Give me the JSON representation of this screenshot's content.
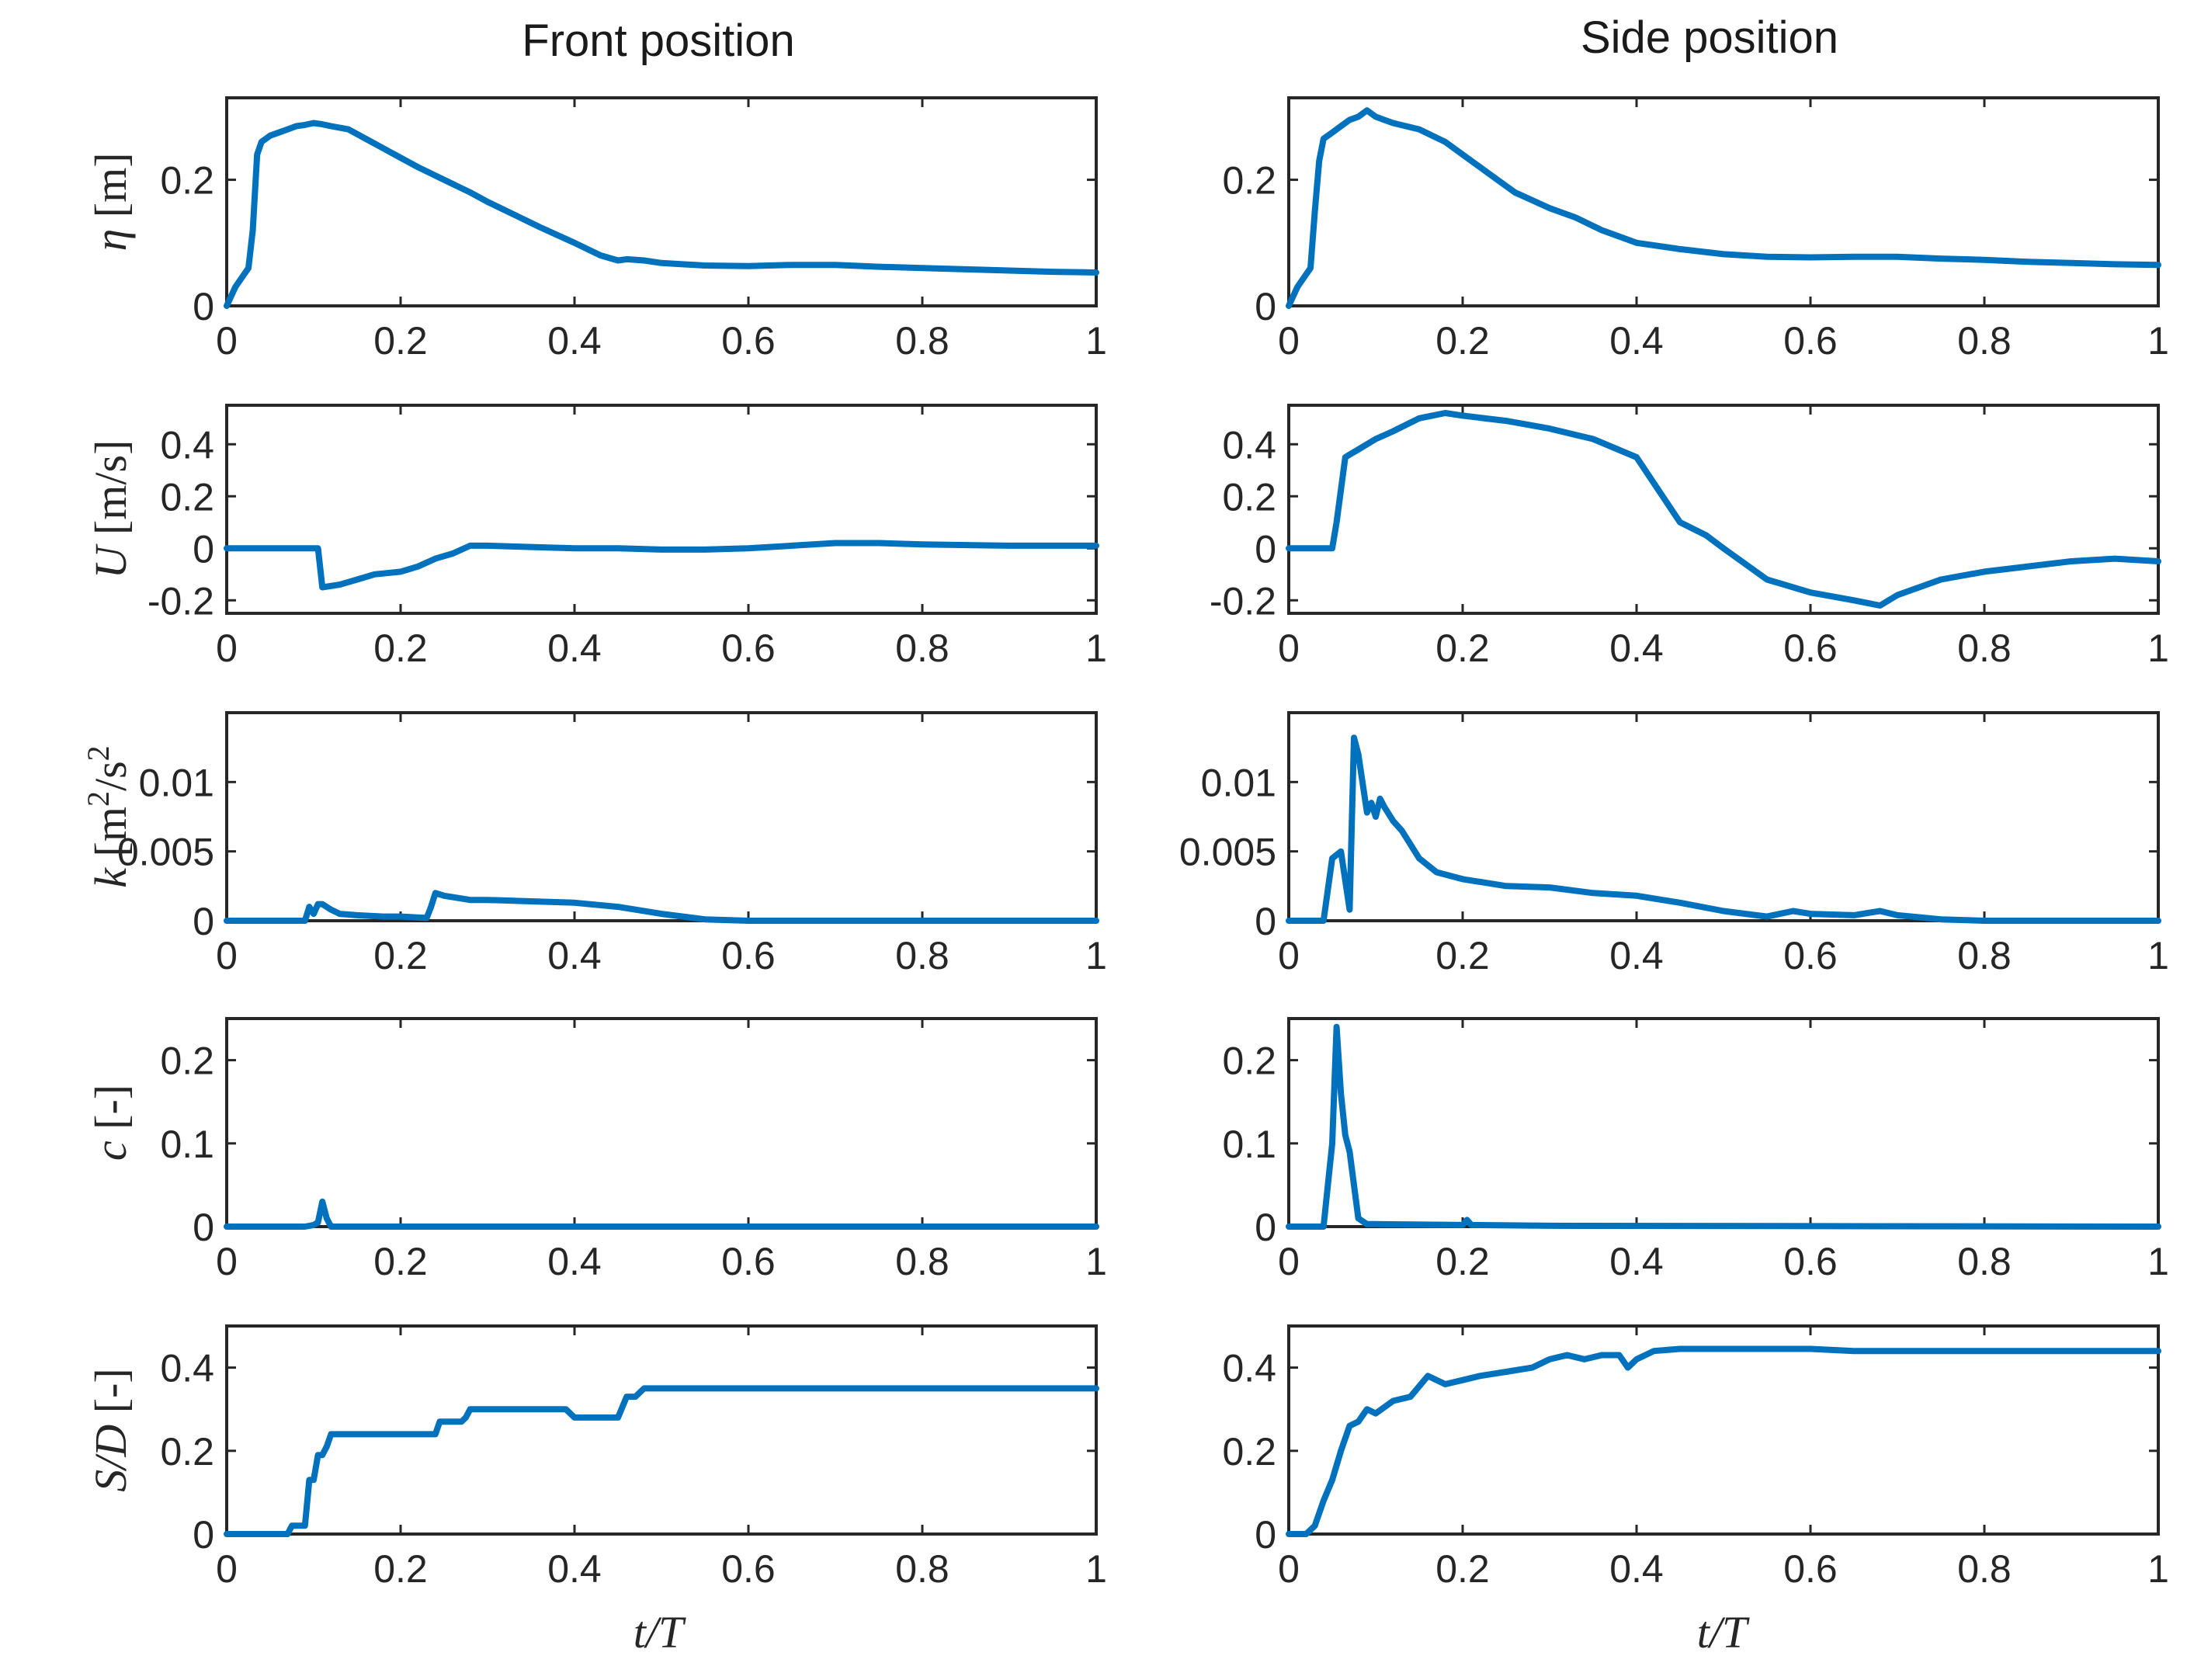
{
  "column_titles": [
    "Front position",
    "Side position"
  ],
  "xlabel_parts": [
    "t",
    "/",
    "T"
  ],
  "colors": {
    "series": "#0072BD",
    "axis": "#262626"
  },
  "chart_data": [
    {
      "type": "line",
      "panel": "front-eta",
      "column": 0,
      "row": 0,
      "ylabel_parts": [
        {
          "t": "η",
          "i": true
        },
        {
          "t": " [m]"
        }
      ],
      "xlim": [
        0,
        1
      ],
      "ylim": [
        0,
        0.33
      ],
      "xticks": [
        "0",
        "0.2",
        "0.4",
        "0.6",
        "0.8",
        "1"
      ],
      "yticks": [
        {
          "v": 0,
          "l": "0"
        },
        {
          "v": 0.2,
          "l": "0.2"
        }
      ],
      "x": [
        0,
        0.01,
        0.02,
        0.025,
        0.03,
        0.035,
        0.04,
        0.045,
        0.05,
        0.06,
        0.07,
        0.08,
        0.09,
        0.1,
        0.11,
        0.12,
        0.14,
        0.16,
        0.18,
        0.2,
        0.22,
        0.25,
        0.28,
        0.3,
        0.33,
        0.36,
        0.4,
        0.43,
        0.45,
        0.46,
        0.48,
        0.5,
        0.55,
        0.6,
        0.65,
        0.7,
        0.75,
        0.8,
        0.85,
        0.9,
        0.95,
        1.0
      ],
      "y": [
        0,
        0.03,
        0.05,
        0.06,
        0.12,
        0.24,
        0.26,
        0.265,
        0.27,
        0.275,
        0.28,
        0.285,
        0.287,
        0.29,
        0.288,
        0.285,
        0.28,
        0.265,
        0.25,
        0.235,
        0.22,
        0.2,
        0.18,
        0.165,
        0.145,
        0.125,
        0.1,
        0.08,
        0.072,
        0.074,
        0.072,
        0.068,
        0.064,
        0.063,
        0.065,
        0.065,
        0.062,
        0.06,
        0.058,
        0.056,
        0.054,
        0.053
      ]
    },
    {
      "type": "line",
      "panel": "side-eta",
      "column": 1,
      "row": 0,
      "ylabel_parts": [],
      "xlim": [
        0,
        1
      ],
      "ylim": [
        0,
        0.33
      ],
      "xticks": [
        "0",
        "0.2",
        "0.4",
        "0.6",
        "0.8",
        "1"
      ],
      "yticks": [
        {
          "v": 0,
          "l": "0"
        },
        {
          "v": 0.2,
          "l": "0.2"
        }
      ],
      "x": [
        0,
        0.01,
        0.02,
        0.025,
        0.03,
        0.035,
        0.04,
        0.05,
        0.06,
        0.07,
        0.08,
        0.09,
        0.1,
        0.12,
        0.15,
        0.18,
        0.2,
        0.23,
        0.26,
        0.3,
        0.33,
        0.36,
        0.4,
        0.45,
        0.5,
        0.55,
        0.6,
        0.65,
        0.7,
        0.75,
        0.8,
        0.85,
        0.9,
        0.95,
        1.0
      ],
      "y": [
        0,
        0.03,
        0.05,
        0.06,
        0.15,
        0.23,
        0.265,
        0.275,
        0.285,
        0.295,
        0.3,
        0.31,
        0.3,
        0.29,
        0.28,
        0.26,
        0.24,
        0.21,
        0.18,
        0.155,
        0.14,
        0.12,
        0.1,
        0.09,
        0.082,
        0.078,
        0.077,
        0.078,
        0.078,
        0.075,
        0.073,
        0.07,
        0.068,
        0.066,
        0.065
      ]
    },
    {
      "type": "line",
      "panel": "front-U",
      "column": 0,
      "row": 1,
      "ylabel_parts": [
        {
          "t": "U",
          "i": true
        },
        {
          "t": " [m/s]"
        }
      ],
      "xlim": [
        0,
        1
      ],
      "ylim": [
        -0.25,
        0.55
      ],
      "xticks": [
        "0",
        "0.2",
        "0.4",
        "0.6",
        "0.8",
        "1"
      ],
      "yticks": [
        {
          "v": -0.2,
          "l": "-0.2"
        },
        {
          "v": 0,
          "l": "0"
        },
        {
          "v": 0.2,
          "l": "0.2"
        },
        {
          "v": 0.4,
          "l": "0.4"
        }
      ],
      "x": [
        0,
        0.05,
        0.105,
        0.11,
        0.13,
        0.15,
        0.17,
        0.2,
        0.22,
        0.24,
        0.26,
        0.28,
        0.3,
        0.35,
        0.4,
        0.45,
        0.5,
        0.55,
        0.6,
        0.65,
        0.7,
        0.75,
        0.8,
        0.9,
        1.0
      ],
      "y": [
        0,
        0,
        0,
        -0.15,
        -0.14,
        -0.12,
        -0.1,
        -0.09,
        -0.07,
        -0.04,
        -0.02,
        0.01,
        0.01,
        0.005,
        0,
        0,
        -0.005,
        -0.005,
        0,
        0.01,
        0.02,
        0.02,
        0.015,
        0.01,
        0.01
      ]
    },
    {
      "type": "line",
      "panel": "side-U",
      "column": 1,
      "row": 1,
      "ylabel_parts": [],
      "xlim": [
        0,
        1
      ],
      "ylim": [
        -0.25,
        0.55
      ],
      "xticks": [
        "0",
        "0.2",
        "0.4",
        "0.6",
        "0.8",
        "1"
      ],
      "yticks": [
        {
          "v": -0.2,
          "l": "-0.2"
        },
        {
          "v": 0,
          "l": "0"
        },
        {
          "v": 0.2,
          "l": "0.2"
        },
        {
          "v": 0.4,
          "l": "0.4"
        }
      ],
      "x": [
        0,
        0.05,
        0.055,
        0.065,
        0.07,
        0.08,
        0.1,
        0.12,
        0.15,
        0.18,
        0.2,
        0.25,
        0.3,
        0.35,
        0.4,
        0.43,
        0.45,
        0.48,
        0.5,
        0.55,
        0.6,
        0.65,
        0.68,
        0.7,
        0.75,
        0.8,
        0.9,
        0.95,
        1.0
      ],
      "y": [
        0,
        0,
        0.1,
        0.35,
        0.36,
        0.38,
        0.42,
        0.45,
        0.5,
        0.52,
        0.51,
        0.49,
        0.46,
        0.42,
        0.35,
        0.2,
        0.1,
        0.05,
        0,
        -0.12,
        -0.17,
        -0.2,
        -0.22,
        -0.18,
        -0.12,
        -0.09,
        -0.05,
        -0.04,
        -0.05
      ]
    },
    {
      "type": "line",
      "panel": "front-k",
      "column": 0,
      "row": 2,
      "ylabel_parts": [
        {
          "t": "k",
          "i": true
        },
        {
          "t": " [m"
        },
        {
          "t": "2",
          "sup": true
        },
        {
          "t": "/s"
        },
        {
          "t": "2",
          "sup": true
        }
      ],
      "xlim": [
        0,
        1
      ],
      "ylim": [
        0,
        0.015
      ],
      "xticks": [
        "0",
        "0.2",
        "0.4",
        "0.6",
        "0.8",
        "1"
      ],
      "yticks": [
        {
          "v": 0,
          "l": "0"
        },
        {
          "v": 0.005,
          "l": "0.005"
        },
        {
          "v": 0.01,
          "l": "0.01"
        }
      ],
      "x": [
        0,
        0.09,
        0.095,
        0.1,
        0.105,
        0.11,
        0.12,
        0.13,
        0.15,
        0.18,
        0.2,
        0.23,
        0.235,
        0.24,
        0.25,
        0.28,
        0.3,
        0.35,
        0.4,
        0.45,
        0.5,
        0.55,
        0.6,
        0.7,
        0.8,
        1.0
      ],
      "y": [
        0,
        0,
        0.001,
        0.0005,
        0.0012,
        0.0012,
        0.0008,
        0.0005,
        0.0004,
        0.0003,
        0.0003,
        0.0002,
        0.001,
        0.002,
        0.0018,
        0.0015,
        0.0015,
        0.0014,
        0.0013,
        0.001,
        0.0005,
        0.0001,
        0,
        0,
        0,
        0
      ]
    },
    {
      "type": "line",
      "panel": "side-k",
      "column": 1,
      "row": 2,
      "ylabel_parts": [],
      "xlim": [
        0,
        1
      ],
      "ylim": [
        0,
        0.015
      ],
      "xticks": [
        "0",
        "0.2",
        "0.4",
        "0.6",
        "0.8",
        "1"
      ],
      "yticks": [
        {
          "v": 0,
          "l": "0"
        },
        {
          "v": 0.005,
          "l": "0.005"
        },
        {
          "v": 0.01,
          "l": "0.01"
        }
      ],
      "x": [
        0,
        0.04,
        0.05,
        0.06,
        0.07,
        0.075,
        0.08,
        0.09,
        0.095,
        0.1,
        0.105,
        0.11,
        0.12,
        0.13,
        0.15,
        0.17,
        0.2,
        0.25,
        0.3,
        0.35,
        0.4,
        0.45,
        0.5,
        0.55,
        0.58,
        0.6,
        0.65,
        0.68,
        0.7,
        0.75,
        0.8,
        1.0
      ],
      "y": [
        0,
        0,
        0.0045,
        0.005,
        0.0008,
        0.0132,
        0.012,
        0.0078,
        0.0085,
        0.0075,
        0.0088,
        0.0082,
        0.0072,
        0.0065,
        0.0045,
        0.0035,
        0.003,
        0.0025,
        0.0024,
        0.002,
        0.0018,
        0.0013,
        0.0007,
        0.0003,
        0.0007,
        0.0005,
        0.0004,
        0.0007,
        0.0004,
        0.0001,
        0,
        0
      ]
    },
    {
      "type": "line",
      "panel": "front-c",
      "column": 0,
      "row": 3,
      "ylabel_parts": [
        {
          "t": "c",
          "i": true
        },
        {
          "t": " [-]"
        }
      ],
      "xlim": [
        0,
        1
      ],
      "ylim": [
        0,
        0.25
      ],
      "xticks": [
        "0",
        "0.2",
        "0.4",
        "0.6",
        "0.8",
        "1"
      ],
      "yticks": [
        {
          "v": 0,
          "l": "0"
        },
        {
          "v": 0.1,
          "l": "0.1"
        },
        {
          "v": 0.2,
          "l": "0.2"
        }
      ],
      "x": [
        0,
        0.09,
        0.1,
        0.105,
        0.11,
        0.115,
        0.12,
        0.13,
        0.2,
        1.0
      ],
      "y": [
        0,
        0,
        0.002,
        0.005,
        0.03,
        0.01,
        0,
        0,
        0,
        0
      ]
    },
    {
      "type": "line",
      "panel": "side-c",
      "column": 1,
      "row": 3,
      "ylabel_parts": [],
      "xlim": [
        0,
        1
      ],
      "ylim": [
        0,
        0.25
      ],
      "xticks": [
        "0",
        "0.2",
        "0.4",
        "0.6",
        "0.8",
        "1"
      ],
      "yticks": [
        {
          "v": 0,
          "l": "0"
        },
        {
          "v": 0.1,
          "l": "0.1"
        },
        {
          "v": 0.2,
          "l": "0.2"
        }
      ],
      "x": [
        0,
        0.04,
        0.05,
        0.055,
        0.06,
        0.065,
        0.07,
        0.075,
        0.08,
        0.09,
        0.1,
        0.2,
        0.205,
        0.21,
        0.3,
        1.0
      ],
      "y": [
        0,
        0,
        0.1,
        0.24,
        0.16,
        0.11,
        0.09,
        0.05,
        0.01,
        0.003,
        0.003,
        0.002,
        0.008,
        0.002,
        0.001,
        0
      ]
    },
    {
      "type": "line",
      "panel": "front-SD",
      "column": 0,
      "row": 4,
      "ylabel_parts": [
        {
          "t": "S/D",
          "i": true
        },
        {
          "t": " [-]"
        }
      ],
      "xlim": [
        0,
        1
      ],
      "ylim": [
        0,
        0.5
      ],
      "xticks": [
        "0",
        "0.2",
        "0.4",
        "0.6",
        "0.8",
        "1"
      ],
      "yticks": [
        {
          "v": 0,
          "l": "0"
        },
        {
          "v": 0.2,
          "l": "0.2"
        },
        {
          "v": 0.4,
          "l": "0.4"
        }
      ],
      "x": [
        0,
        0.07,
        0.075,
        0.09,
        0.095,
        0.1,
        0.105,
        0.11,
        0.115,
        0.12,
        0.125,
        0.2,
        0.24,
        0.245,
        0.27,
        0.275,
        0.28,
        0.3,
        0.35,
        0.39,
        0.4,
        0.45,
        0.46,
        0.47,
        0.48,
        0.5,
        1.0
      ],
      "y": [
        0,
        0,
        0.02,
        0.02,
        0.13,
        0.13,
        0.19,
        0.19,
        0.21,
        0.24,
        0.24,
        0.24,
        0.24,
        0.27,
        0.27,
        0.28,
        0.3,
        0.3,
        0.3,
        0.3,
        0.28,
        0.28,
        0.33,
        0.33,
        0.35,
        0.35,
        0.35
      ]
    },
    {
      "type": "line",
      "panel": "side-SD",
      "column": 1,
      "row": 4,
      "ylabel_parts": [],
      "xlim": [
        0,
        1
      ],
      "ylim": [
        0,
        0.5
      ],
      "xticks": [
        "0",
        "0.2",
        "0.4",
        "0.6",
        "0.8",
        "1"
      ],
      "yticks": [
        {
          "v": 0,
          "l": "0"
        },
        {
          "v": 0.2,
          "l": "0.2"
        },
        {
          "v": 0.4,
          "l": "0.4"
        }
      ],
      "x": [
        0,
        0.02,
        0.03,
        0.04,
        0.05,
        0.06,
        0.07,
        0.08,
        0.09,
        0.1,
        0.12,
        0.14,
        0.16,
        0.18,
        0.2,
        0.22,
        0.25,
        0.28,
        0.3,
        0.32,
        0.34,
        0.36,
        0.38,
        0.39,
        0.4,
        0.42,
        0.45,
        0.5,
        0.55,
        0.6,
        0.65,
        0.7,
        0.8,
        0.9,
        1.0
      ],
      "y": [
        0,
        0,
        0.02,
        0.08,
        0.13,
        0.2,
        0.26,
        0.27,
        0.3,
        0.29,
        0.32,
        0.33,
        0.38,
        0.36,
        0.37,
        0.38,
        0.39,
        0.4,
        0.42,
        0.43,
        0.42,
        0.43,
        0.43,
        0.4,
        0.42,
        0.44,
        0.445,
        0.445,
        0.445,
        0.445,
        0.44,
        0.44,
        0.44,
        0.44,
        0.44
      ]
    }
  ]
}
